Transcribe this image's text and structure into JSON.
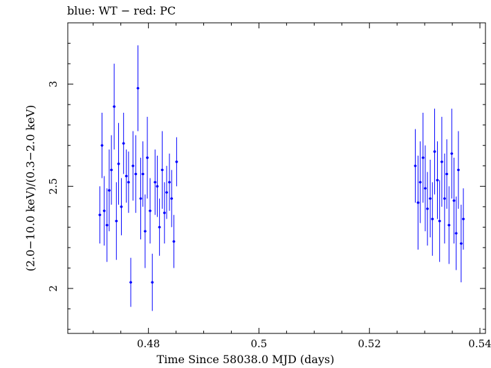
{
  "chart_data": {
    "type": "scatter",
    "title": "blue: WT − red: PC",
    "xlabel": "Time Since 58038.0 MJD (days)",
    "ylabel": "(2.0−10.0 keV)/(0.3−2.0 keV)",
    "xlim": [
      0.4654,
      0.541
    ],
    "ylim": [
      1.78,
      3.3
    ],
    "xticks": [
      0.48,
      0.5,
      0.52,
      0.54
    ],
    "xtick_labels": [
      "0.48",
      "0.5",
      "0.52",
      "0.54"
    ],
    "yticks": [
      2.0,
      2.5,
      3.0
    ],
    "ytick_labels": [
      "2",
      "2.5",
      "3"
    ],
    "grid": false,
    "series": [
      {
        "name": "WT",
        "color": "#0000ff",
        "x": [
          0.4712,
          0.4716,
          0.472,
          0.4725,
          0.4729,
          0.4733,
          0.4738,
          0.4742,
          0.4746,
          0.4751,
          0.4755,
          0.476,
          0.4764,
          0.4768,
          0.4772,
          0.4777,
          0.4781,
          0.4786,
          0.479,
          0.4794,
          0.4798,
          0.4803,
          0.4807,
          0.4812,
          0.4816,
          0.482,
          0.4825,
          0.4829,
          0.4833,
          0.4838,
          0.4842,
          0.4846,
          0.4851,
          0.5283,
          0.5288,
          0.5292,
          0.5297,
          0.5301,
          0.5305,
          0.531,
          0.5314,
          0.5318,
          0.5323,
          0.5327,
          0.5331,
          0.5336,
          0.534,
          0.5344,
          0.5349,
          0.5353,
          0.5357,
          0.5361,
          0.5366,
          0.537
        ],
        "y": [
          2.36,
          2.7,
          2.38,
          2.31,
          2.48,
          2.58,
          2.89,
          2.33,
          2.61,
          2.4,
          2.71,
          2.55,
          2.52,
          2.03,
          2.6,
          2.56,
          2.98,
          2.44,
          2.56,
          2.28,
          2.64,
          2.38,
          2.03,
          2.52,
          2.5,
          2.3,
          2.58,
          2.37,
          2.47,
          2.52,
          2.44,
          2.23,
          2.62,
          2.6,
          2.42,
          2.52,
          2.64,
          2.49,
          2.39,
          2.44,
          2.34,
          2.67,
          2.53,
          2.33,
          2.62,
          2.44,
          2.56,
          2.31,
          2.66,
          2.43,
          2.27,
          2.58,
          2.22,
          2.34
        ],
        "yerr": [
          0.14,
          0.16,
          0.17,
          0.18,
          0.2,
          0.17,
          0.21,
          0.19,
          0.2,
          0.14,
          0.15,
          0.13,
          0.15,
          0.12,
          0.17,
          0.19,
          0.21,
          0.2,
          0.16,
          0.18,
          0.2,
          0.16,
          0.14,
          0.16,
          0.15,
          0.14,
          0.19,
          0.15,
          0.13,
          0.14,
          0.14,
          0.13,
          0.12,
          0.18,
          0.23,
          0.2,
          0.22,
          0.21,
          0.18,
          0.19,
          0.18,
          0.21,
          0.19,
          0.2,
          0.22,
          0.22,
          0.17,
          0.19,
          0.22,
          0.21,
          0.18,
          0.19,
          0.19,
          0.15
        ]
      }
    ]
  }
}
